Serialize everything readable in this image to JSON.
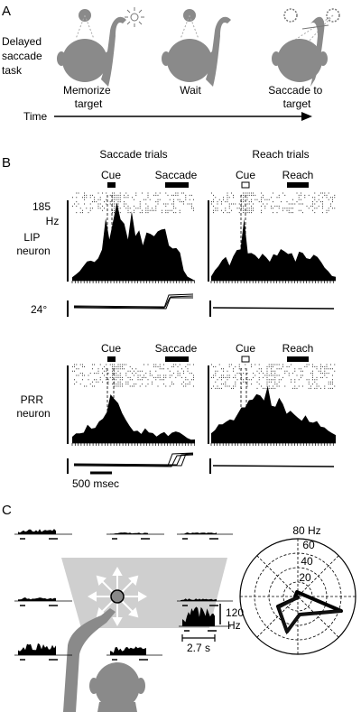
{
  "panel_a": {
    "letter": "A",
    "task_label_lines": [
      "Delayed",
      "saccade",
      "task"
    ],
    "stage_1_lines": [
      "Memorize",
      "target"
    ],
    "stage_2": "Wait",
    "stage_3_lines": [
      "Saccade to",
      "target"
    ],
    "time_label": "Time"
  },
  "panel_b": {
    "letter": "B",
    "saccade_trials_header": "Saccade trials",
    "reach_trials_header": "Reach trials",
    "cue_label": "Cue",
    "saccade_label": "Saccade",
    "reach_label": "Reach",
    "rate_scale_value": "185",
    "rate_scale_unit": "Hz",
    "lip_label_lines": [
      "LIP",
      "neuron"
    ],
    "prr_label_lines": [
      "PRR",
      "neuron"
    ],
    "eye_scale": "24°",
    "time_scale": "500 msec"
  },
  "panel_c": {
    "letter": "C",
    "polar_max_label": "80 Hz",
    "polar_rings": [
      "60",
      "40",
      "20"
    ],
    "rate_scale_value": "120",
    "rate_scale_unit": "Hz",
    "time_scale": "2.7 s"
  }
}
